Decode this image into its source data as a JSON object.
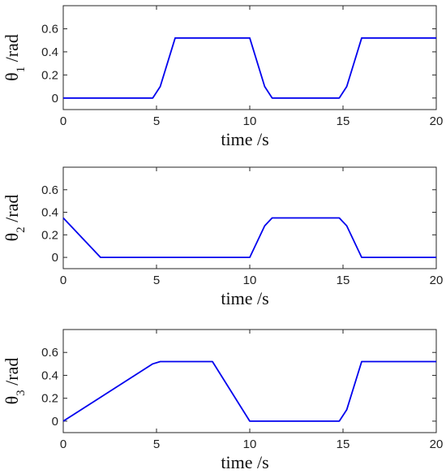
{
  "colors": {
    "line": "#0000ee",
    "axis": "#262626",
    "background": "#ffffff"
  },
  "chart_data": [
    {
      "type": "line",
      "xlabel": "time /s",
      "ylabel": {
        "symbol": "θ",
        "subscript": "1",
        "unit": " /rad"
      },
      "xlim": [
        0,
        20
      ],
      "ylim": [
        -0.1,
        0.8
      ],
      "xticks": [
        0,
        5,
        10,
        15,
        20
      ],
      "yticks": [
        0,
        0.2,
        0.4,
        0.6
      ],
      "ytick_labels": [
        "0",
        "0.2",
        "0.4",
        "0.6"
      ],
      "grid": false,
      "series": [
        {
          "x": [
            0,
            4.8,
            5.2,
            6.0,
            10.0,
            10.8,
            11.2,
            14.8,
            15.2,
            16.0,
            20.0
          ],
          "y": [
            0,
            0,
            0.1,
            0.52,
            0.52,
            0.1,
            0,
            0,
            0.1,
            0.52,
            0.52
          ]
        }
      ]
    },
    {
      "type": "line",
      "xlabel": "time /s",
      "ylabel": {
        "symbol": "θ",
        "subscript": "2",
        "unit": " /rad"
      },
      "xlim": [
        0,
        20
      ],
      "ylim": [
        -0.1,
        0.8
      ],
      "xticks": [
        0,
        5,
        10,
        15,
        20
      ],
      "yticks": [
        0,
        0.2,
        0.4,
        0.6
      ],
      "ytick_labels": [
        "0",
        "0.2",
        "0.4",
        "0.6"
      ],
      "grid": false,
      "series": [
        {
          "x": [
            0,
            2.0,
            10.0,
            10.8,
            11.2,
            14.8,
            15.2,
            16.0,
            20.0
          ],
          "y": [
            0.35,
            0,
            0,
            0.28,
            0.35,
            0.35,
            0.28,
            0,
            0
          ]
        }
      ]
    },
    {
      "type": "line",
      "xlabel": "time /s",
      "ylabel": {
        "symbol": "θ",
        "subscript": "3",
        "unit": " /rad"
      },
      "xlim": [
        0,
        20
      ],
      "ylim": [
        -0.1,
        0.8
      ],
      "xticks": [
        0,
        5,
        10,
        15,
        20
      ],
      "yticks": [
        0,
        0.2,
        0.4,
        0.6
      ],
      "ytick_labels": [
        "0",
        "0.2",
        "0.4",
        "0.6"
      ],
      "grid": false,
      "series": [
        {
          "x": [
            0,
            4.8,
            5.2,
            8.0,
            10.0,
            14.8,
            15.2,
            16.0,
            20.0
          ],
          "y": [
            0,
            0.5,
            0.52,
            0.52,
            0,
            0,
            0.1,
            0.52,
            0.52
          ]
        }
      ]
    }
  ]
}
